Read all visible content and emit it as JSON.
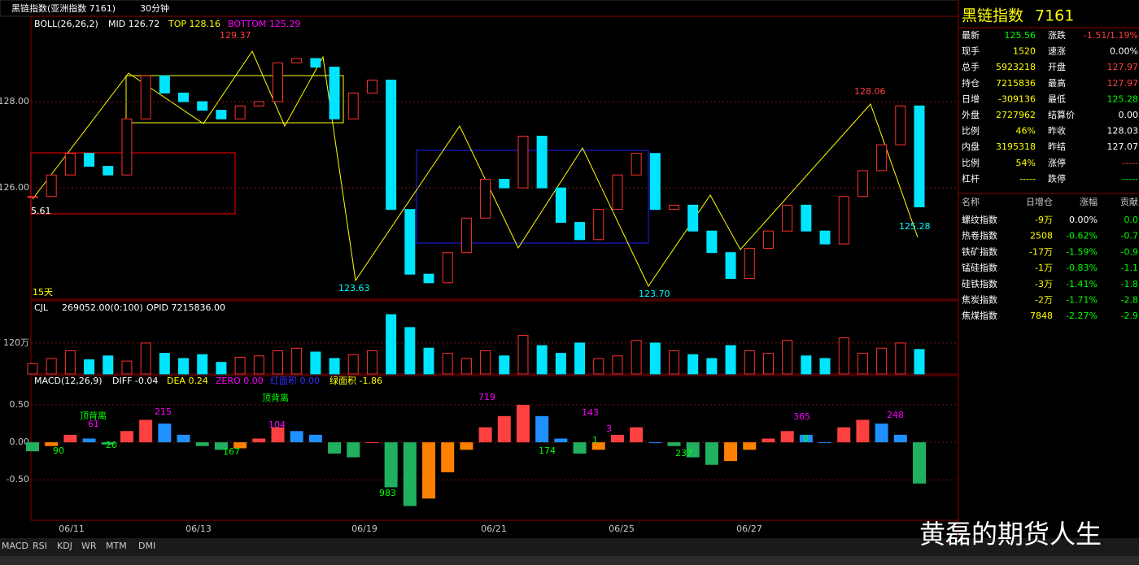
{
  "header": {
    "title": "黑链指数(亚洲指数 7161)",
    "period": "30分钟"
  },
  "price_panel": {
    "legend": [
      "BOLL(26,26,2)",
      "MID 126.72",
      "TOP 128.16",
      "BOTTOM 125.29"
    ],
    "ylim": [
      123.42,
      129.98
    ],
    "yticks": [
      {
        "value": 128,
        "label": "128.00"
      },
      {
        "value": 126,
        "label": "126.00"
      }
    ],
    "closes": [
      125.8,
      126.3,
      126.8,
      126.5,
      126.3,
      127.6,
      128.6,
      128.2,
      128.0,
      127.8,
      127.6,
      127.9,
      128.0,
      128.9,
      129.0,
      128.8,
      127.6,
      128.2,
      128.5,
      125.5,
      124.0,
      123.8,
      124.5,
      125.3,
      126.2,
      126.0,
      127.2,
      126.0,
      125.2,
      124.8,
      125.5,
      126.3,
      126.8,
      125.5,
      125.6,
      125.0,
      124.5,
      123.9,
      124.6,
      125.0,
      125.6,
      125.0,
      124.7,
      125.8,
      126.4,
      127.0,
      127.9,
      125.56
    ],
    "annotations": [
      "129.37",
      "123.63",
      "123.70",
      "128.06",
      "125.28",
      "5.61",
      "15天"
    ]
  },
  "volume_panel": {
    "legend": [
      "CJL",
      "269052.00(0:100)",
      "OPID 7215836.00"
    ],
    "ylim": [
      0,
      290
    ],
    "yticks": [
      {
        "value": 120,
        "label": "120万"
      }
    ],
    "values": [
      40,
      60,
      90,
      55,
      70,
      50,
      120,
      80,
      60,
      75,
      45,
      65,
      70,
      90,
      100,
      85,
      60,
      75,
      90,
      230,
      180,
      100,
      80,
      60,
      90,
      70,
      150,
      110,
      80,
      120,
      60,
      70,
      130,
      120,
      90,
      75,
      60,
      110,
      90,
      80,
      130,
      70,
      60,
      140,
      80,
      100,
      120,
      95
    ]
  },
  "macd_panel": {
    "legend": [
      "MACD(12,26,9)",
      "DIFF -0.04",
      "DEA 0.24",
      "ZERO 0.00",
      "红面积 0.00",
      "绿面积 -1.86"
    ],
    "ylim": [
      -1.04,
      0.89
    ],
    "yticks": [
      {
        "value": 0.5,
        "label": "0.50"
      },
      {
        "value": 0,
        "label": "0.00"
      },
      {
        "value": -0.5,
        "label": "-0.50"
      }
    ],
    "values": [
      -0.12,
      -0.05,
      0.1,
      0.05,
      -0.03,
      0.15,
      0.3,
      0.25,
      0.1,
      -0.05,
      -0.1,
      -0.08,
      0.05,
      0.2,
      0.15,
      0.1,
      -0.15,
      -0.2,
      0.0,
      -0.6,
      -0.85,
      -0.75,
      -0.4,
      -0.1,
      0.2,
      0.35,
      0.5,
      0.35,
      0.05,
      -0.15,
      -0.1,
      0.1,
      0.2,
      0.0,
      -0.05,
      -0.2,
      -0.3,
      -0.25,
      -0.1,
      0.05,
      0.15,
      0.1,
      0.0,
      0.2,
      0.3,
      0.25,
      0.1,
      -0.55
    ],
    "annotations": [
      "90",
      "61",
      "20",
      "215",
      "167",
      "104",
      "983",
      "719",
      "174",
      "143",
      "3",
      "1",
      "237",
      "365",
      "0",
      "248",
      "顶背离",
      "顶背离"
    ]
  },
  "x_labels": [
    "06/11",
    "06/13",
    "06/19",
    "06/21",
    "06/25",
    "06/27"
  ],
  "tabs": [
    "MACD",
    "RSI",
    "KDJ",
    "WR",
    "MTM",
    "DMI"
  ],
  "quote": {
    "title": "黑链指数",
    "code": "7161",
    "rows": [
      [
        "最新",
        "125.56",
        "涨跌",
        "-1.51/1.19%"
      ],
      [
        "现手",
        "1520",
        "速涨",
        "0.00%"
      ],
      [
        "总手",
        "5923218",
        "开盘",
        "127.97"
      ],
      [
        "持仓",
        "7215836",
        "最高",
        "127.97"
      ],
      [
        "日增",
        "-309136",
        "最低",
        "125.28"
      ],
      [
        "外盘",
        "2727962",
        "结算价",
        "0.00"
      ],
      [
        "比例",
        "46%",
        "昨收",
        "128.03"
      ],
      [
        "内盘",
        "3195318",
        "昨结",
        "127.07"
      ],
      [
        "比例",
        "54%",
        "涨停",
        "-----"
      ],
      [
        "杠杆",
        "-----",
        "跌停",
        "-----"
      ]
    ]
  },
  "sector": {
    "header": [
      "名称",
      "日增仓",
      "涨幅",
      "贡献"
    ],
    "rows": [
      [
        "螺纹指数",
        "-9万",
        "0.00%",
        "0.0"
      ],
      [
        "热卷指数",
        "2508",
        "-0.62%",
        "-0.7"
      ],
      [
        "铁矿指数",
        "-17万",
        "-1.59%",
        "-0.9"
      ],
      [
        "锰硅指数",
        "-1万",
        "-0.83%",
        "-1.1"
      ],
      [
        "硅铁指数",
        "-3万",
        "-1.41%",
        "-1.8"
      ],
      [
        "焦炭指数",
        "-2万",
        "-1.71%",
        "-2.8"
      ],
      [
        "焦煤指数",
        "7848",
        "-2.27%",
        "-2.9"
      ]
    ]
  },
  "watermark": "黄磊的期货人生"
}
